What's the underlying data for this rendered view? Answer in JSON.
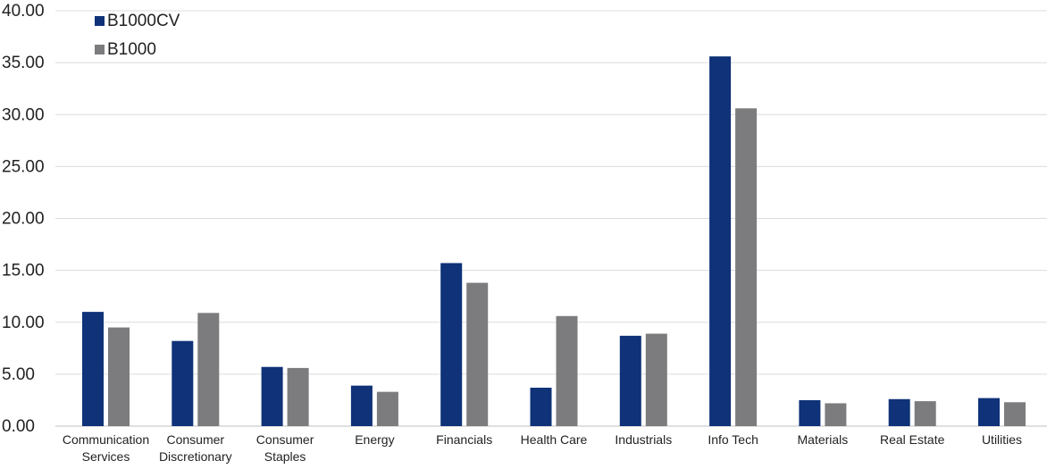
{
  "chart_data": {
    "type": "bar",
    "categories": [
      [
        "Communication",
        "Services"
      ],
      [
        "Consumer",
        "Discretionary"
      ],
      [
        "Consumer",
        "Staples"
      ],
      [
        "Energy"
      ],
      [
        "Financials"
      ],
      [
        "Health Care"
      ],
      [
        "Industrials"
      ],
      [
        "Info Tech"
      ],
      [
        "Materials"
      ],
      [
        "Real Estate"
      ],
      [
        "Utilities"
      ]
    ],
    "series": [
      {
        "name": "B1000CV",
        "color": "#0f3278",
        "values": [
          11.0,
          8.2,
          5.7,
          3.9,
          15.7,
          3.7,
          8.7,
          35.6,
          2.5,
          2.6,
          2.7
        ]
      },
      {
        "name": "B1000",
        "color": "#7c7c7e",
        "values": [
          9.5,
          10.9,
          5.6,
          3.3,
          13.8,
          10.6,
          8.9,
          30.6,
          2.2,
          2.4,
          2.3
        ]
      }
    ],
    "ylim": [
      0,
      40
    ],
    "yticks": [
      "0.00",
      "5.00",
      "10.00",
      "15.00",
      "20.00",
      "25.00",
      "30.00",
      "35.00",
      "40.00"
    ],
    "grid": true,
    "legend_position": "top-left"
  }
}
